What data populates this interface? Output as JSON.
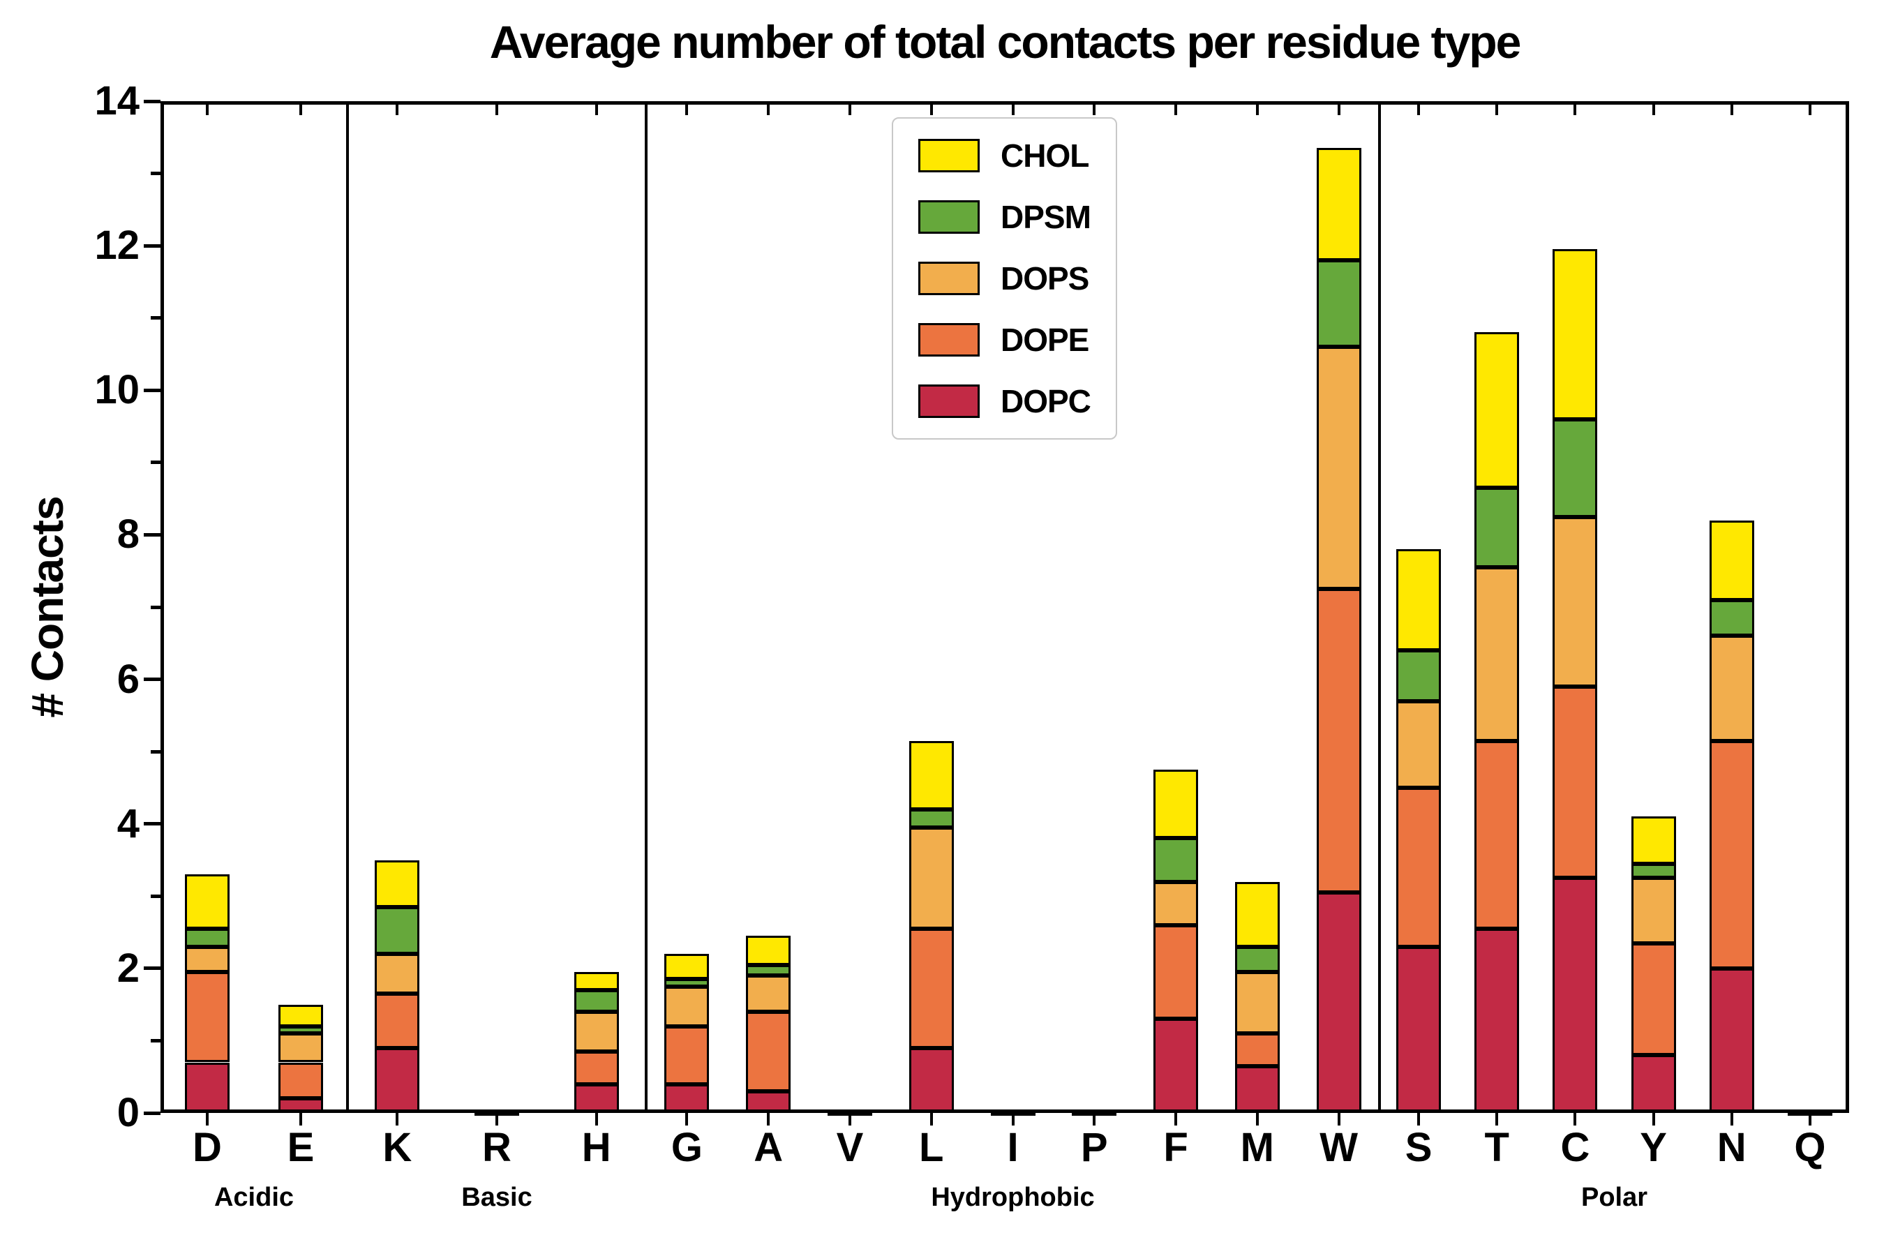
{
  "chart_data": {
    "type": "bar",
    "stacked": true,
    "title": "Average number of total contacts per residue type",
    "ylabel": "# Contacts",
    "xlabel": "",
    "ylim": [
      0,
      14
    ],
    "yticks": [
      0,
      2,
      4,
      6,
      8,
      10,
      12,
      14
    ],
    "grid": false,
    "legend_position": "upper center inside",
    "legend_order": [
      "CHOL",
      "DPSM",
      "DOPS",
      "DOPE",
      "DOPC"
    ],
    "groups": [
      {
        "label": "Acidic",
        "categories": [
          "D",
          "E"
        ]
      },
      {
        "label": "Basic",
        "categories": [
          "K",
          "R",
          "H"
        ]
      },
      {
        "label": "Hydrophobic",
        "categories": [
          "G",
          "A",
          "V",
          "L",
          "I",
          "P",
          "F",
          "M",
          "W"
        ]
      },
      {
        "label": "Polar",
        "categories": [
          "S",
          "T",
          "C",
          "Y",
          "N",
          "Q"
        ]
      }
    ],
    "categories": [
      "D",
      "E",
      "K",
      "R",
      "H",
      "G",
      "A",
      "V",
      "L",
      "I",
      "P",
      "F",
      "M",
      "W",
      "S",
      "T",
      "C",
      "Y",
      "N",
      "Q"
    ],
    "series": [
      {
        "name": "DOPC",
        "color": "#c22a45",
        "values": [
          0.7,
          0.2,
          0.9,
          0.02,
          0.4,
          0.4,
          0.3,
          0.02,
          0.9,
          0.02,
          0.02,
          1.3,
          0.65,
          3.05,
          2.3,
          2.55,
          3.25,
          0.8,
          2.0,
          0.02
        ]
      },
      {
        "name": "DOPE",
        "color": "#ec7440",
        "values": [
          1.25,
          0.5,
          0.75,
          0,
          0.45,
          0.8,
          1.1,
          0,
          1.65,
          0,
          0,
          1.3,
          0.45,
          4.2,
          2.2,
          2.6,
          2.65,
          1.55,
          3.15,
          0
        ]
      },
      {
        "name": "DOPS",
        "color": "#f2ae4d",
        "values": [
          0.35,
          0.4,
          0.55,
          0,
          0.55,
          0.55,
          0.5,
          0,
          1.4,
          0,
          0,
          0.6,
          0.85,
          3.35,
          1.2,
          2.4,
          2.35,
          0.9,
          1.45,
          0
        ]
      },
      {
        "name": "DPSM",
        "color": "#66a83b",
        "values": [
          0.25,
          0.1,
          0.65,
          0,
          0.3,
          0.1,
          0.15,
          0,
          0.25,
          0,
          0,
          0.6,
          0.35,
          1.2,
          0.7,
          1.1,
          1.35,
          0.2,
          0.5,
          0
        ]
      },
      {
        "name": "CHOL",
        "color": "#ffe800",
        "values": [
          0.75,
          0.3,
          0.65,
          0,
          0.25,
          0.35,
          0.4,
          0,
          0.95,
          0,
          0,
          0.95,
          0.9,
          1.55,
          1.4,
          2.15,
          2.35,
          0.65,
          1.1,
          0
        ]
      }
    ]
  }
}
